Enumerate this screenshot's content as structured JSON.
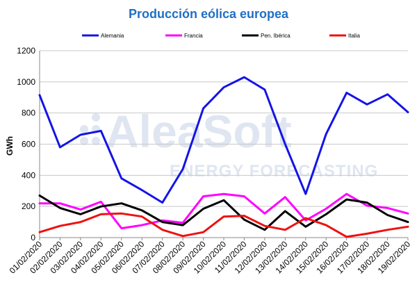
{
  "chart_data": {
    "type": "line",
    "title": "Producción eólica europea",
    "ylabel": "GWh",
    "xlabel": "",
    "ylim": [
      0,
      1200
    ],
    "yticks": [
      0,
      200,
      400,
      600,
      800,
      1000,
      1200
    ],
    "grid": "horizontal",
    "legend_position": "top",
    "categories": [
      "01/02/2020",
      "02/02/2020",
      "03/02/2020",
      "04/02/2020",
      "05/02/2020",
      "06/02/2020",
      "07/02/2020",
      "08/02/2020",
      "09/02/2020",
      "10/02/2020",
      "11/02/2020",
      "12/02/2020",
      "13/02/2020",
      "14/02/2020",
      "15/02/2020",
      "16/02/2020",
      "17/02/2020",
      "18/02/2020",
      "19/02/2020"
    ],
    "series": [
      {
        "name": "Alemania",
        "color": "#1414e6",
        "values": [
          915,
          580,
          660,
          685,
          380,
          305,
          225,
          440,
          830,
          965,
          1030,
          950,
          600,
          280,
          665,
          930,
          855,
          920,
          805
        ]
      },
      {
        "name": "Francia",
        "color": "#ff00ff",
        "values": [
          220,
          220,
          180,
          230,
          60,
          80,
          110,
          95,
          265,
          280,
          265,
          155,
          260,
          110,
          185,
          280,
          205,
          190,
          155
        ]
      },
      {
        "name": "Pen. Ibérica",
        "color": "#000000",
        "values": [
          270,
          190,
          150,
          200,
          220,
          175,
          100,
          80,
          185,
          240,
          115,
          50,
          170,
          70,
          150,
          245,
          225,
          145,
          100
        ]
      },
      {
        "name": "Italia",
        "color": "#ee1111",
        "values": [
          35,
          75,
          100,
          150,
          155,
          135,
          50,
          10,
          35,
          135,
          140,
          75,
          50,
          125,
          80,
          5,
          25,
          50,
          70
        ]
      }
    ]
  },
  "watermark": {
    "brand": "AleaSoft",
    "tagline": "ENERGY FORECASTING"
  }
}
